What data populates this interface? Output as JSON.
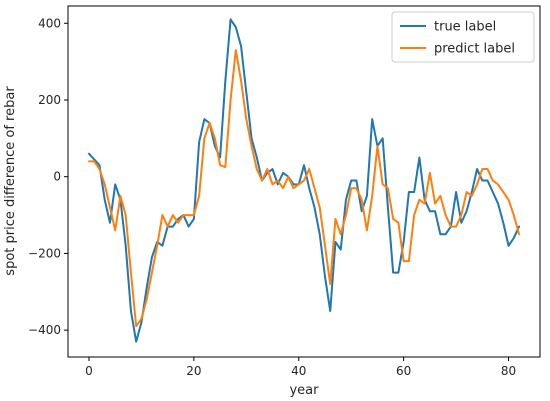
{
  "chart_data": {
    "type": "line",
    "title": "",
    "xlabel": "year",
    "ylabel": "spot price difference of rebar",
    "xlim": [
      -4,
      86
    ],
    "ylim": [
      -470,
      445
    ],
    "xticks": [
      0,
      20,
      40,
      60,
      80
    ],
    "yticks": [
      -400,
      -200,
      0,
      200,
      400
    ],
    "grid": false,
    "legend": "top-right",
    "series": [
      {
        "name": "true label",
        "color": "#1f77b4",
        "x": [
          0,
          1,
          2,
          3,
          4,
          5,
          6,
          7,
          8,
          9,
          10,
          11,
          12,
          13,
          14,
          15,
          16,
          17,
          18,
          19,
          20,
          21,
          22,
          23,
          24,
          25,
          26,
          27,
          28,
          29,
          30,
          31,
          32,
          33,
          34,
          35,
          36,
          37,
          38,
          39,
          40,
          41,
          42,
          43,
          44,
          45,
          46,
          47,
          48,
          49,
          50,
          51,
          52,
          53,
          54,
          55,
          56,
          57,
          58,
          59,
          60,
          61,
          62,
          63,
          64,
          65,
          66,
          67,
          68,
          69,
          70,
          71,
          72,
          73,
          74,
          75,
          76,
          77,
          78,
          79,
          80,
          81,
          82
        ],
        "y": [
          60,
          45,
          30,
          -60,
          -120,
          -20,
          -60,
          -180,
          -350,
          -430,
          -380,
          -290,
          -210,
          -170,
          -180,
          -130,
          -130,
          -110,
          -100,
          -130,
          -110,
          90,
          150,
          140,
          80,
          50,
          250,
          410,
          390,
          340,
          220,
          100,
          50,
          -10,
          10,
          20,
          -20,
          10,
          0,
          -20,
          -20,
          30,
          -30,
          -80,
          -150,
          -260,
          -350,
          -170,
          -190,
          -60,
          -10,
          -10,
          -90,
          -50,
          150,
          80,
          100,
          -80,
          -250,
          -250,
          -170,
          -40,
          -40,
          50,
          -60,
          -90,
          -90,
          -150,
          -150,
          -130,
          -40,
          -120,
          -90,
          -40,
          20,
          -10,
          -10,
          -40,
          -70,
          -120,
          -180,
          -160,
          -130
        ]
      },
      {
        "name": "predict label",
        "color": "#ff7f0e",
        "x": [
          0,
          1,
          2,
          3,
          4,
          5,
          6,
          7,
          8,
          9,
          10,
          11,
          12,
          13,
          14,
          15,
          16,
          17,
          18,
          19,
          20,
          21,
          22,
          23,
          24,
          25,
          26,
          27,
          28,
          29,
          30,
          31,
          32,
          33,
          34,
          35,
          36,
          37,
          38,
          39,
          40,
          41,
          42,
          43,
          44,
          45,
          46,
          47,
          48,
          49,
          50,
          51,
          52,
          53,
          54,
          55,
          56,
          57,
          58,
          59,
          60,
          61,
          62,
          63,
          64,
          65,
          66,
          67,
          68,
          69,
          70,
          71,
          72,
          73,
          74,
          75,
          76,
          77,
          78,
          79,
          80,
          81,
          82
        ],
        "y": [
          40,
          40,
          20,
          -20,
          -80,
          -140,
          -50,
          -100,
          -250,
          -390,
          -370,
          -320,
          -250,
          -180,
          -100,
          -130,
          -100,
          -120,
          -100,
          -100,
          -100,
          -50,
          100,
          140,
          100,
          30,
          25,
          200,
          330,
          250,
          150,
          80,
          20,
          -10,
          20,
          -20,
          -10,
          -30,
          0,
          -30,
          -20,
          -10,
          20,
          -30,
          -80,
          -180,
          -280,
          -110,
          -150,
          -100,
          -30,
          -30,
          -60,
          -140,
          -50,
          80,
          -20,
          -30,
          -110,
          -120,
          -220,
          -220,
          -100,
          -60,
          -70,
          10,
          -70,
          -50,
          -100,
          -130,
          -130,
          -100,
          -40,
          -50,
          -20,
          20,
          20,
          -10,
          -20,
          -40,
          -60,
          -100,
          -150
        ]
      }
    ]
  }
}
